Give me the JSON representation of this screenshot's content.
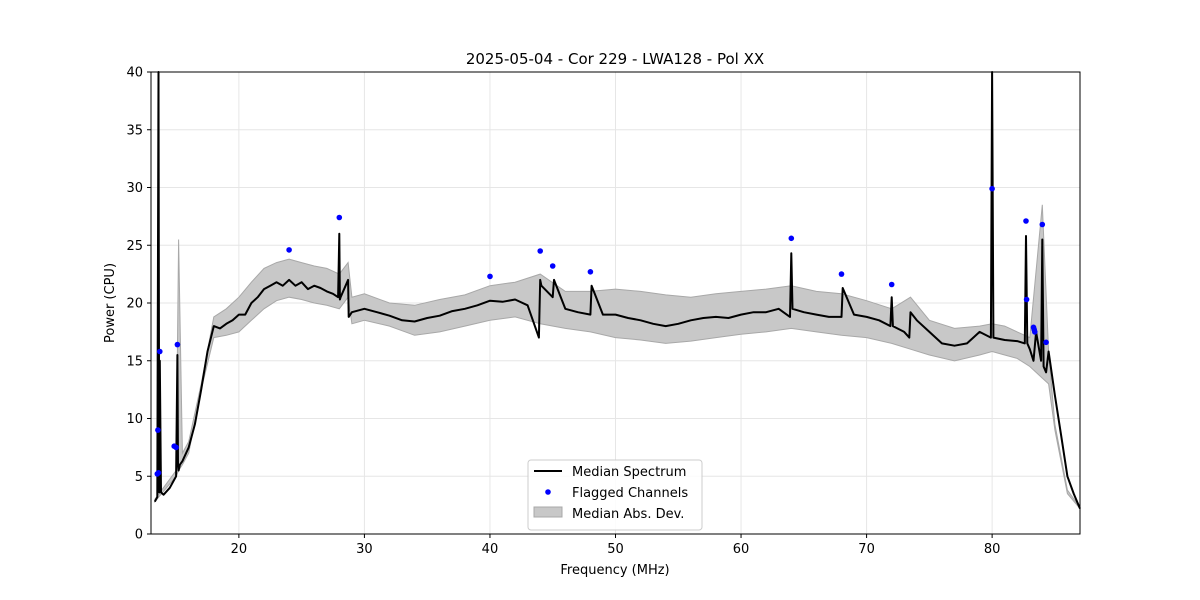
{
  "chart_data": {
    "type": "line",
    "title": "2025-05-04 - Cor 229 - LWA128 - Pol XX",
    "xlabel": "Frequency (MHz)",
    "ylabel": "Power (CPU)",
    "xlim": [
      13,
      87
    ],
    "ylim": [
      0,
      40
    ],
    "xticks": [
      20,
      30,
      40,
      50,
      60,
      70,
      80
    ],
    "yticks": [
      0,
      5,
      10,
      15,
      20,
      25,
      30,
      35,
      40
    ],
    "grid": true,
    "legend_position": "lower center",
    "colors": {
      "median": "#000000",
      "flagged": "#0000ff",
      "mad_fill": "#c8c8c8",
      "mad_edge": "#a8a8a8"
    },
    "series": [
      {
        "name": "Median Spectrum",
        "kind": "line",
        "x": [
          13.3,
          13.5,
          13.6,
          13.65,
          13.7,
          13.8,
          14.0,
          14.5,
          15.0,
          15.1,
          15.15,
          15.2,
          15.3,
          15.5,
          16.0,
          16.5,
          17.0,
          17.5,
          18.0,
          18.5,
          19.0,
          19.5,
          20.0,
          20.5,
          21.0,
          21.5,
          22.0,
          22.5,
          23.0,
          23.5,
          24.0,
          24.5,
          25.0,
          25.5,
          26.0,
          26.5,
          27.0,
          27.5,
          27.9,
          28.0,
          28.05,
          28.1,
          28.5,
          28.7,
          28.75,
          29.0,
          30.0,
          31.0,
          32.0,
          33.0,
          34.0,
          35.0,
          36.0,
          37.0,
          38.0,
          39.0,
          40.0,
          41.0,
          42.0,
          43.0,
          43.9,
          44.0,
          44.1,
          45.0,
          45.1,
          46.0,
          47.0,
          48.0,
          48.1,
          49.0,
          50.0,
          51.0,
          52.0,
          53.0,
          54.0,
          55.0,
          56.0,
          57.0,
          58.0,
          59.0,
          60.0,
          61.0,
          62.0,
          63.0,
          63.9,
          64.0,
          64.1,
          65.0,
          66.0,
          67.0,
          68.0,
          68.1,
          69.0,
          70.0,
          71.0,
          71.9,
          72.0,
          72.1,
          73.0,
          73.4,
          73.5,
          74.0,
          75.0,
          76.0,
          77.0,
          78.0,
          79.0,
          79.9,
          80.0,
          80.1,
          81.0,
          82.0,
          82.6,
          82.7,
          82.8,
          83.0,
          83.3,
          83.5,
          83.9,
          84.0,
          84.1,
          84.3,
          84.5,
          85.0,
          85.5,
          86.0,
          86.5,
          87.0
        ],
        "y": [
          2.8,
          3.2,
          40.0,
          3.6,
          15.0,
          3.6,
          3.4,
          4.0,
          5.0,
          15.5,
          6.0,
          5.5,
          6.0,
          6.3,
          7.5,
          9.5,
          12.5,
          15.8,
          18.0,
          17.8,
          18.2,
          18.5,
          19.0,
          19.0,
          20.0,
          20.5,
          21.2,
          21.5,
          21.8,
          21.5,
          22.0,
          21.5,
          21.8,
          21.2,
          21.5,
          21.3,
          21.0,
          20.8,
          20.5,
          26.0,
          20.3,
          20.5,
          21.5,
          22.0,
          18.8,
          19.2,
          19.5,
          19.2,
          18.9,
          18.5,
          18.4,
          18.7,
          18.9,
          19.3,
          19.5,
          19.8,
          20.2,
          20.1,
          20.3,
          19.8,
          17.0,
          22.0,
          21.5,
          20.5,
          22.0,
          19.5,
          19.2,
          19.0,
          21.5,
          19.0,
          19.0,
          18.7,
          18.5,
          18.2,
          18.0,
          18.2,
          18.5,
          18.7,
          18.8,
          18.7,
          19.0,
          19.2,
          19.2,
          19.5,
          18.8,
          24.3,
          19.5,
          19.2,
          19.0,
          18.8,
          18.8,
          21.3,
          19.0,
          18.8,
          18.5,
          18.0,
          20.5,
          18.0,
          17.5,
          17.0,
          19.2,
          18.5,
          17.5,
          16.5,
          16.3,
          16.5,
          17.5,
          17.0,
          40.0,
          17.0,
          16.8,
          16.7,
          16.5,
          25.8,
          16.5,
          16.0,
          15.0,
          17.5,
          15.0,
          25.5,
          14.5,
          14.0,
          15.8,
          12.0,
          8.5,
          5.0,
          3.5,
          2.2
        ]
      },
      {
        "name": "Flagged Channels",
        "kind": "scatter",
        "x": [
          13.5,
          13.55,
          13.6,
          13.7,
          14.85,
          15.0,
          15.1,
          24.0,
          28.0,
          40.0,
          44.0,
          45.0,
          48.0,
          64.0,
          68.0,
          72.0,
          80.0,
          82.7,
          82.75,
          83.3,
          83.35,
          83.4,
          84.0,
          84.3
        ],
        "y": [
          5.2,
          9.0,
          5.3,
          15.8,
          7.6,
          7.5,
          16.4,
          24.6,
          27.4,
          22.3,
          24.5,
          23.2,
          22.7,
          25.6,
          22.5,
          21.6,
          29.9,
          27.1,
          20.3,
          17.9,
          17.7,
          17.5,
          26.8,
          16.6
        ]
      },
      {
        "name": "Median Abs. Dev.",
        "kind": "band",
        "x": [
          13.3,
          15.0,
          15.2,
          15.5,
          16.0,
          17.0,
          18.0,
          19.0,
          20.0,
          21.0,
          22.0,
          23.0,
          24.0,
          25.0,
          26.0,
          27.0,
          28.0,
          28.7,
          29.0,
          30.0,
          32.0,
          34.0,
          36.0,
          38.0,
          40.0,
          42.0,
          44.0,
          46.0,
          48.0,
          50.0,
          52.0,
          54.0,
          56.0,
          58.0,
          60.0,
          62.0,
          64.0,
          66.0,
          68.0,
          70.0,
          72.0,
          73.5,
          75.0,
          77.0,
          79.0,
          80.0,
          81.0,
          82.0,
          83.0,
          84.0,
          84.5,
          85.0,
          86.0,
          87.0
        ],
        "lower": [
          2.8,
          5.0,
          5.5,
          6.0,
          7.0,
          12.5,
          17.0,
          17.2,
          17.5,
          18.5,
          19.5,
          20.2,
          20.5,
          20.3,
          20.0,
          19.8,
          19.5,
          20.5,
          18.2,
          18.5,
          18.0,
          17.2,
          17.5,
          18.0,
          18.5,
          18.8,
          18.2,
          17.8,
          17.5,
          17.0,
          16.8,
          16.5,
          16.7,
          17.0,
          17.3,
          17.5,
          17.8,
          17.5,
          17.2,
          17.0,
          16.5,
          16.0,
          15.5,
          15.0,
          15.5,
          15.8,
          15.5,
          15.2,
          14.5,
          13.5,
          13.0,
          9.0,
          3.5,
          2.2
        ],
        "upper": [
          3.0,
          5.5,
          25.5,
          7.0,
          8.0,
          13.0,
          18.8,
          19.5,
          20.5,
          21.8,
          23.0,
          23.5,
          23.8,
          23.5,
          23.2,
          23.0,
          22.5,
          23.5,
          20.5,
          20.8,
          20.0,
          19.8,
          20.3,
          20.7,
          21.5,
          21.8,
          22.5,
          21.0,
          21.0,
          21.2,
          21.0,
          20.7,
          20.5,
          20.8,
          21.0,
          21.2,
          21.5,
          21.0,
          20.8,
          20.2,
          19.5,
          20.5,
          18.5,
          17.8,
          18.0,
          18.2,
          18.0,
          17.5,
          17.0,
          28.5,
          15.8,
          9.5,
          3.8,
          2.3
        ]
      }
    ],
    "legend": [
      "Median Spectrum",
      "Flagged Channels",
      "Median Abs. Dev."
    ]
  }
}
